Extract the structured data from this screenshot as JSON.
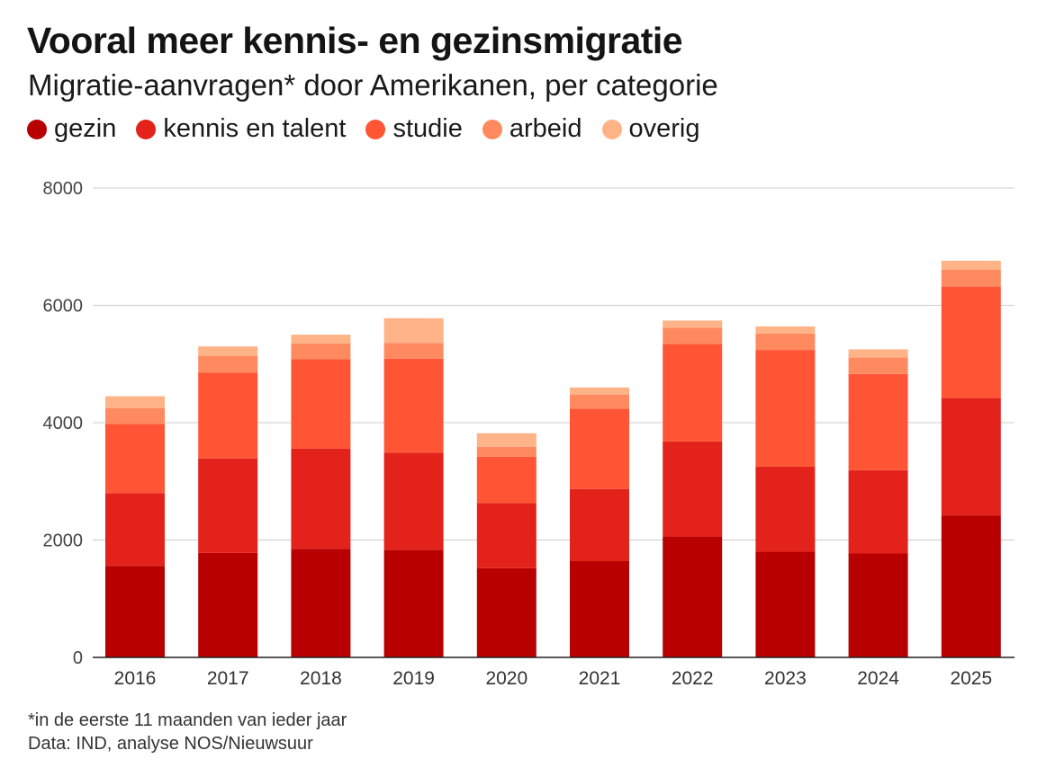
{
  "title": "Vooral meer kennis- en gezinsmigratie",
  "subtitle": "Migratie-aanvragen* door Amerikanen, per categorie",
  "legend": [
    {
      "label": "gezin",
      "color": "#b80000"
    },
    {
      "label": "kennis en talent",
      "color": "#e3231b"
    },
    {
      "label": "studie",
      "color": "#ff5535"
    },
    {
      "label": "arbeid",
      "color": "#ff8a60"
    },
    {
      "label": "overig",
      "color": "#ffb387"
    }
  ],
  "footnote": "*in de eerste 11 maanden van ieder jaar",
  "source": "Data: IND, analyse NOS/Nieuwsuur",
  "chart_data": {
    "type": "bar",
    "stacked": true,
    "title": "Vooral meer kennis- en gezinsmigratie",
    "subtitle": "Migratie-aanvragen* door Amerikanen, per categorie",
    "xlabel": "",
    "ylabel": "",
    "ylim": [
      0,
      8000
    ],
    "yticks": [
      0,
      2000,
      4000,
      6000,
      8000
    ],
    "grid": true,
    "legend_position": "top-left",
    "categories": [
      "2016",
      "2017",
      "2018",
      "2019",
      "2020",
      "2021",
      "2022",
      "2023",
      "2024",
      "2025"
    ],
    "series": [
      {
        "name": "gezin",
        "color": "#b80000",
        "values": [
          1560,
          1780,
          1850,
          1830,
          1520,
          1640,
          2060,
          1800,
          1770,
          2420
        ]
      },
      {
        "name": "kennis en talent",
        "color": "#e3231b",
        "values": [
          1240,
          1610,
          1710,
          1660,
          1110,
          1230,
          1620,
          1450,
          1420,
          2000
        ]
      },
      {
        "name": "studie",
        "color": "#ff5535",
        "values": [
          1180,
          1460,
          1520,
          1600,
          790,
          1370,
          1660,
          1990,
          1640,
          1900
        ]
      },
      {
        "name": "arbeid",
        "color": "#ff8a60",
        "values": [
          270,
          290,
          270,
          270,
          170,
          240,
          280,
          280,
          280,
          290
        ]
      },
      {
        "name": "overig",
        "color": "#ffb387",
        "values": [
          200,
          160,
          150,
          420,
          230,
          120,
          120,
          120,
          140,
          150
        ]
      }
    ]
  }
}
